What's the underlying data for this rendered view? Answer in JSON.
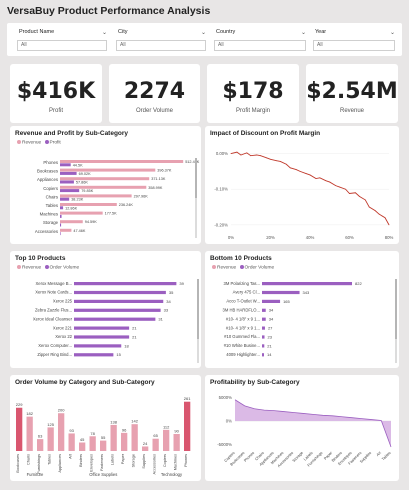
{
  "title": "VersaBuy Product Performance Analysis",
  "filters": [
    {
      "label": "Product Name",
      "value": "All"
    },
    {
      "label": "City",
      "value": "All"
    },
    {
      "label": "Country",
      "value": "All"
    },
    {
      "label": "Year",
      "value": "All"
    }
  ],
  "kpis": [
    {
      "value": "$416K",
      "label": "Profit"
    },
    {
      "value": "2274",
      "label": "Order Volume"
    },
    {
      "value": "$178",
      "label": "Profit Margin"
    },
    {
      "value": "$2.54M",
      "label": "Revenue"
    }
  ],
  "colors": {
    "revenue": "#e7a1b0",
    "profit": "#9b5fc0",
    "purple": "#9b5fc0",
    "red": "#c0392b",
    "area": "#d7b2e3"
  },
  "cards": {
    "revprofit": {
      "title": "Revenue and Profit by Sub-Category",
      "legend": {
        "a": "Revenue",
        "b": "Profit"
      }
    },
    "discount": {
      "title": "Impact of Discount on Profit Margin"
    },
    "top10": {
      "title": "Top 10 Products",
      "legend": {
        "a": "Revenue",
        "b": "Order Volume"
      }
    },
    "bottom10": {
      "title": "Bottom 10 Products",
      "legend": {
        "a": "Revenue",
        "b": "Order Volume"
      }
    },
    "ordervol": {
      "title": "Order Volume by Category and Sub-Category"
    },
    "profitability": {
      "title": "Profitability by Sub-Category"
    }
  },
  "chart_data": [
    {
      "id": "revprofit",
      "type": "bar",
      "orientation": "horizontal",
      "categories": [
        "Phones",
        "Bookcases",
        "Appliances",
        "Copiers",
        "Chairs",
        "Tables",
        "Machines",
        "Storage",
        "Accessories"
      ],
      "series": [
        {
          "name": "Revenue",
          "values": [
            512.46,
            396.37,
            371.13,
            358.99,
            297.96,
            236.24,
            177.5,
            94.59,
            47.46
          ],
          "labels": [
            "512.46K",
            "396.37K",
            "371.13K",
            "358.99K",
            "297.96K",
            "236.24K",
            "177.5K",
            "94.59K",
            "47.46K"
          ]
        },
        {
          "name": "Profit",
          "values": [
            44.5,
            69.02,
            57.86,
            79.85,
            38.23,
            12.86,
            6.5,
            4.5,
            2.5
          ],
          "labels": [
            "44.5K",
            "69.02K",
            "57.86K",
            "79.85K",
            "38.23K",
            "12.86K",
            "",
            "",
            ""
          ]
        }
      ]
    },
    {
      "id": "discount",
      "type": "line",
      "x_ticks": [
        "0%",
        "20%",
        "40%",
        "60%",
        "80%"
      ],
      "y_ticks": [
        "0.00%",
        "-0.10%",
        "-0.20%"
      ],
      "x": [
        0,
        3,
        5,
        8,
        10,
        13,
        15,
        18,
        20,
        23,
        25,
        28,
        30,
        33,
        35,
        38,
        40,
        43,
        45,
        48,
        50,
        53,
        55,
        58,
        60,
        63,
        65,
        68,
        70,
        73,
        75,
        78,
        80
      ],
      "y": [
        0.0,
        0.004,
        -0.004,
        0.002,
        -0.006,
        -0.004,
        -0.006,
        -0.012,
        -0.016,
        -0.02,
        -0.022,
        -0.03,
        -0.04,
        -0.045,
        -0.05,
        -0.056,
        -0.06,
        -0.07,
        -0.068,
        -0.076,
        -0.08,
        -0.09,
        -0.094,
        -0.1,
        -0.112,
        -0.11,
        -0.12,
        -0.13,
        -0.15,
        -0.16,
        -0.17,
        -0.18,
        -0.2
      ],
      "ylim": [
        -0.22,
        0.01
      ],
      "xlim": [
        0,
        80
      ]
    },
    {
      "id": "top10",
      "type": "bar",
      "orientation": "horizontal",
      "categories": [
        "Xerox Message B...",
        "Xerox Note Cards...",
        "Xerox 225",
        "Zebra Zazzle Flus...",
        "Xerox Ideal Cleanser",
        "Xerox 221",
        "Xerox 22",
        "Xerox Computer...",
        "Zipper Ring Bind..."
      ],
      "series": [
        {
          "name": "Order Volume",
          "values": [
            39,
            35,
            34,
            33,
            31,
            21,
            21,
            18,
            15
          ]
        }
      ]
    },
    {
      "id": "bottom10",
      "type": "bar",
      "orientation": "horizontal",
      "categories": [
        "3M Polarizing Tas...",
        "Avery 475 Cl...",
        "Acco T-Outlet W...",
        "3M HB HARDFLO...",
        "#10- 4 1/8\" x 9 1...",
        "#10- 4 1/8\" x 9 1...",
        "#10 Gummed Fla...",
        "#10 White Busine...",
        "4009 Highlighter..."
      ],
      "series": [
        {
          "name": "Revenue",
          "values": [
            822,
            343,
            165,
            34,
            34,
            27,
            23,
            21,
            14
          ]
        }
      ]
    },
    {
      "id": "ordervol",
      "type": "bar",
      "categories": [
        "Bookcases",
        "Chairs",
        "Furnishings",
        "Tables",
        "Appliances",
        "Art",
        "Binders",
        "Envelopes",
        "Fasteners",
        "Labels",
        "Paper",
        "Storage",
        "Supplies",
        "Accessories",
        "Copiers",
        "Machines",
        "Phones"
      ],
      "values": [
        229,
        182,
        63,
        125,
        200,
        93,
        45,
        78,
        55,
        138,
        96,
        142,
        24,
        65,
        112,
        90,
        261
      ],
      "groups": [
        {
          "name": "Furniture",
          "count": 4
        },
        {
          "name": "Office Supplies",
          "count": 9
        },
        {
          "name": "Technology",
          "count": 4
        }
      ]
    },
    {
      "id": "profitability",
      "type": "area",
      "categories": [
        "Copiers",
        "Bookcases",
        "Phones",
        "Chairs",
        "Appliances",
        "Machines",
        "Accessories",
        "Storage",
        "Labels",
        "Furnishings",
        "Paper",
        "Binders",
        "Envelopes",
        "Fasteners",
        "Supplies",
        "Art",
        "Tables"
      ],
      "values": [
        4500,
        3200,
        2600,
        2300,
        2200,
        2000,
        1800,
        1600,
        1400,
        1200,
        1100,
        900,
        700,
        500,
        300,
        100,
        -5500
      ],
      "y_ticks": [
        "5000%",
        "0%",
        "-5000%"
      ],
      "ylim": [
        -5500,
        5500
      ]
    }
  ]
}
